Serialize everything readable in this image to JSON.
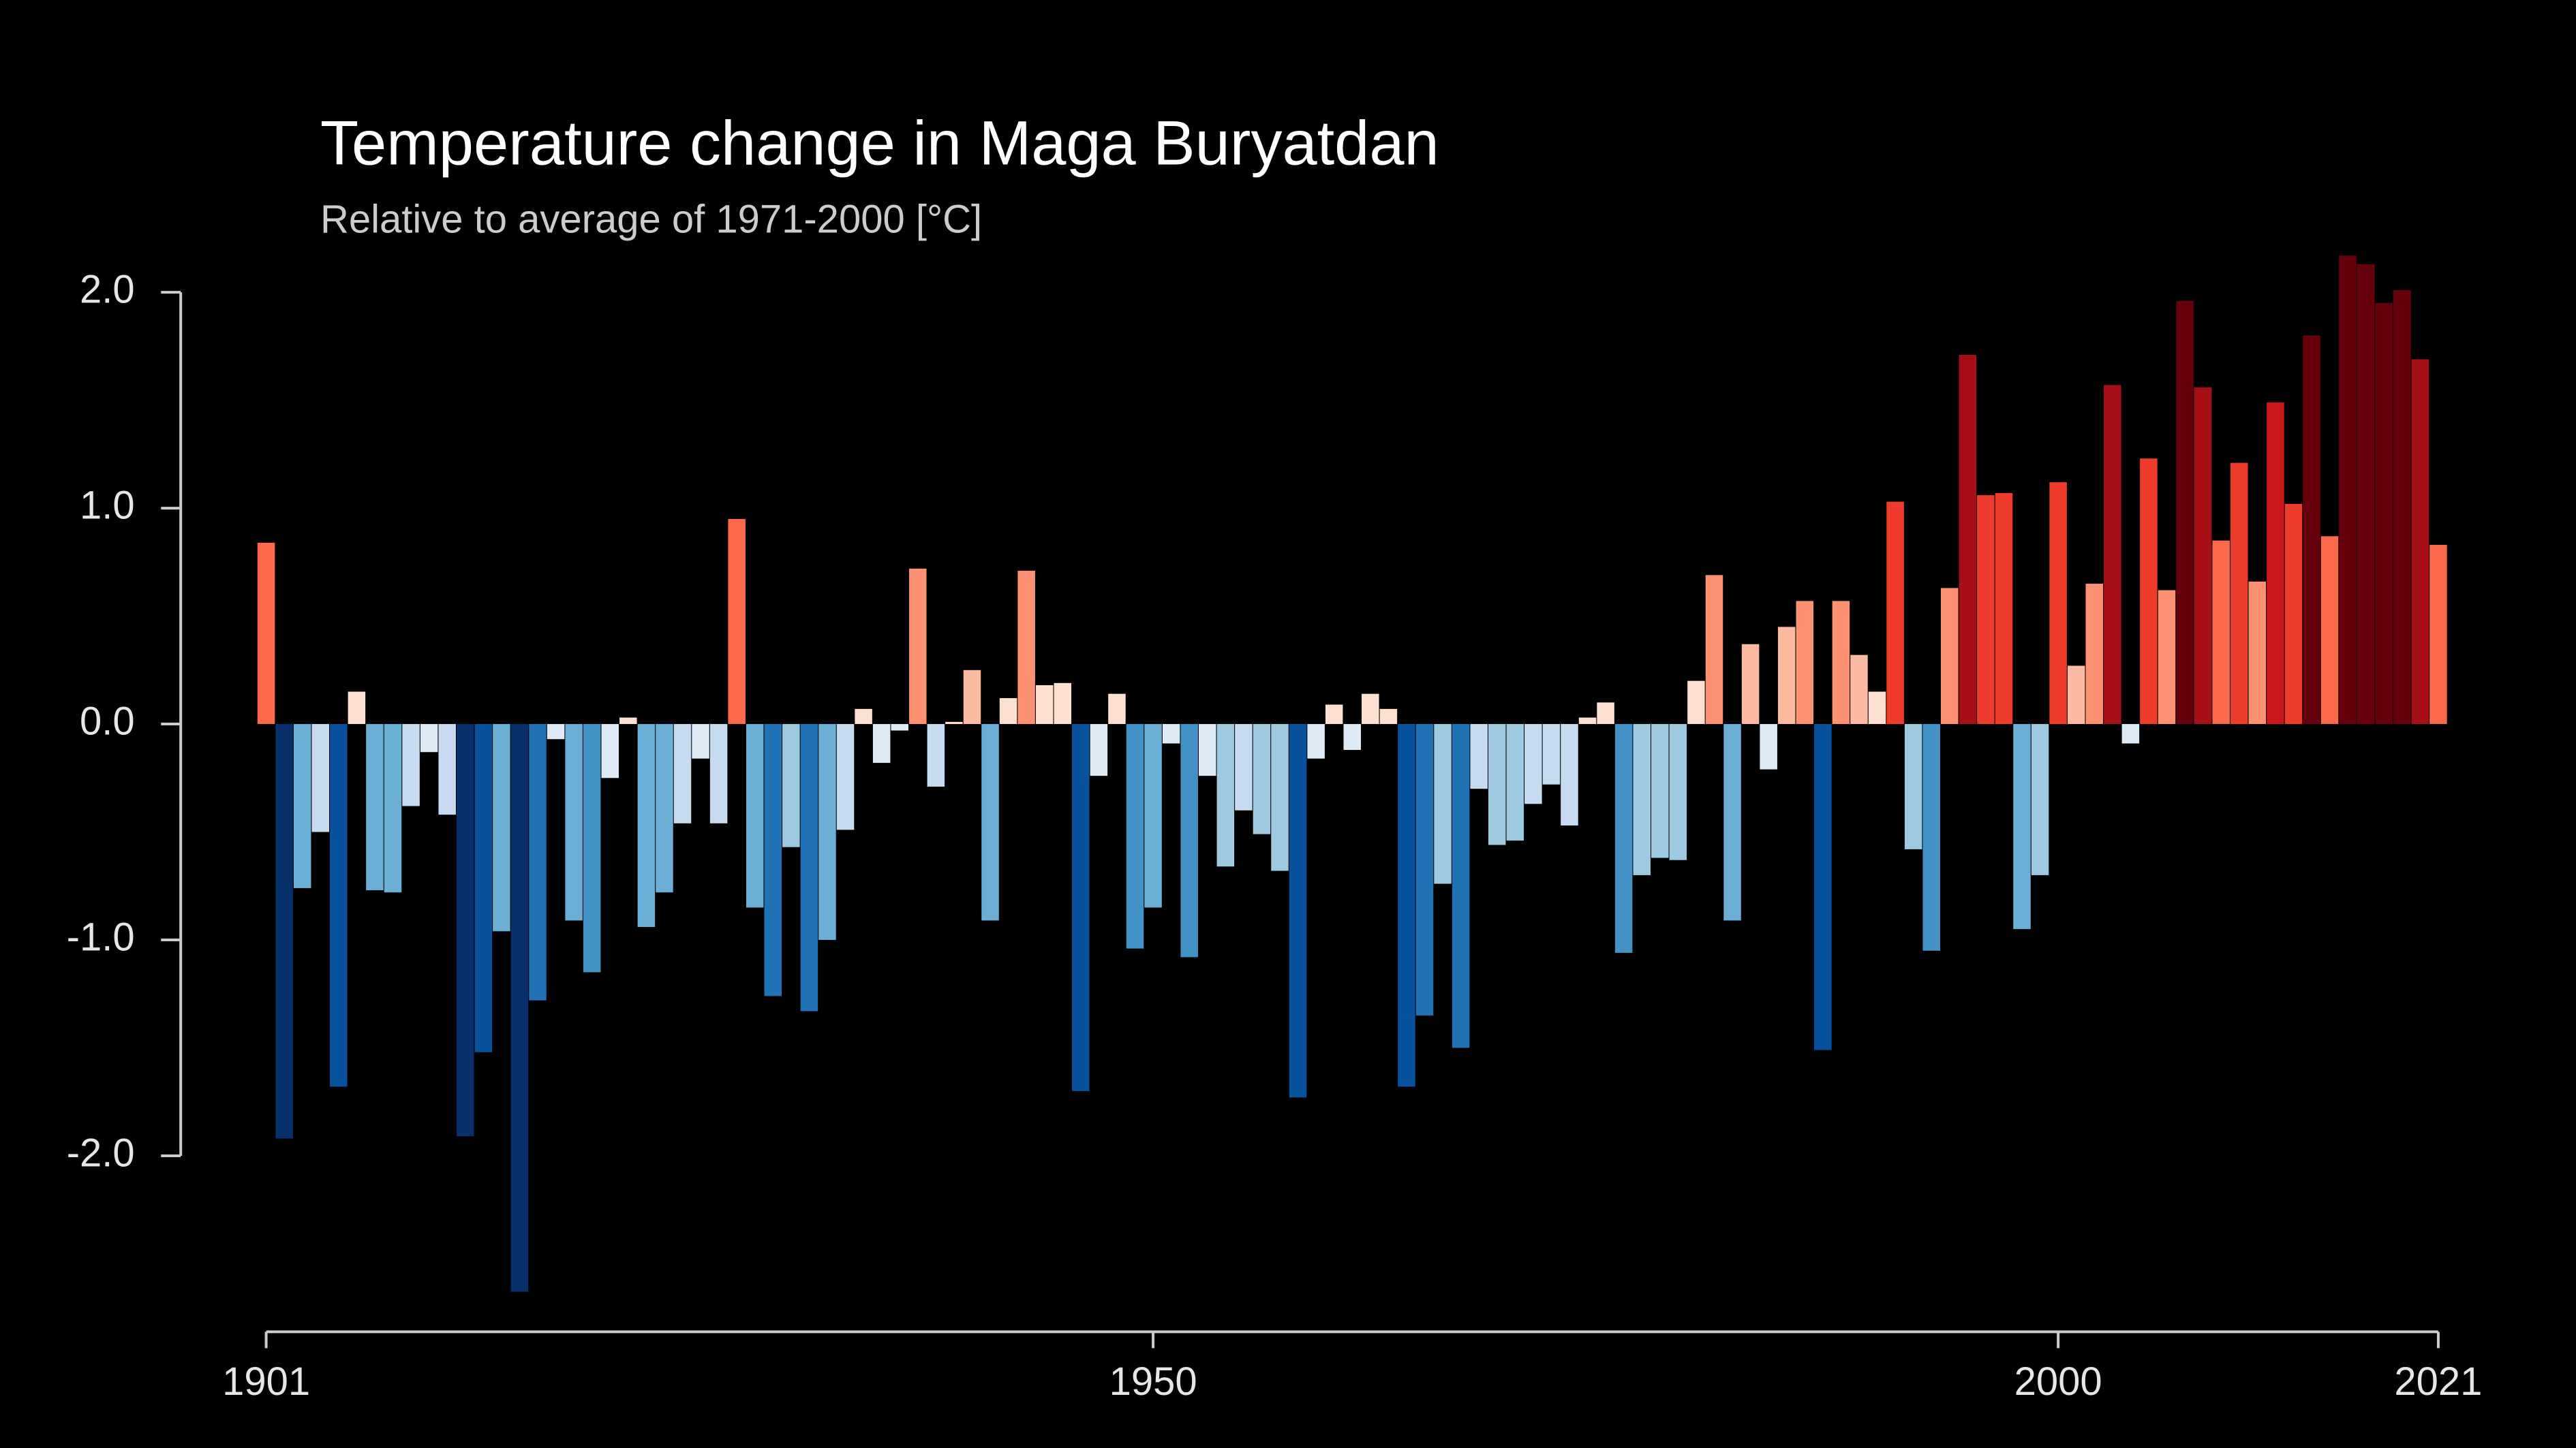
{
  "chart_data": {
    "type": "bar",
    "title": "Temperature change in Maga Buryatdan",
    "subtitle": "Relative to average of 1971-2000  [°C]",
    "x": [
      1901,
      1902,
      1903,
      1904,
      1905,
      1906,
      1907,
      1908,
      1909,
      1910,
      1911,
      1912,
      1913,
      1914,
      1915,
      1916,
      1917,
      1918,
      1919,
      1920,
      1921,
      1922,
      1923,
      1924,
      1925,
      1926,
      1927,
      1928,
      1929,
      1930,
      1931,
      1932,
      1933,
      1934,
      1935,
      1936,
      1937,
      1938,
      1939,
      1940,
      1941,
      1942,
      1943,
      1944,
      1945,
      1946,
      1947,
      1948,
      1949,
      1950,
      1951,
      1952,
      1953,
      1954,
      1955,
      1956,
      1957,
      1958,
      1959,
      1960,
      1961,
      1962,
      1963,
      1964,
      1965,
      1966,
      1967,
      1968,
      1969,
      1970,
      1971,
      1972,
      1973,
      1974,
      1975,
      1976,
      1977,
      1978,
      1979,
      1980,
      1981,
      1982,
      1983,
      1984,
      1985,
      1986,
      1987,
      1988,
      1989,
      1990,
      1991,
      1992,
      1993,
      1994,
      1995,
      1996,
      1997,
      1998,
      1999,
      2000,
      2001,
      2002,
      2003,
      2004,
      2005,
      2006,
      2007,
      2008,
      2009,
      2010,
      2011,
      2012,
      2013,
      2014,
      2015,
      2016,
      2017,
      2018,
      2019,
      2020,
      2021
    ],
    "values": [
      0.84,
      -1.92,
      -0.76,
      -0.5,
      -1.68,
      0.15,
      -0.77,
      -0.78,
      -0.38,
      -0.13,
      -0.42,
      -1.91,
      -1.52,
      -0.96,
      -2.63,
      -1.28,
      -0.07,
      -0.91,
      -1.15,
      -0.25,
      0.03,
      -0.94,
      -0.78,
      -0.46,
      -0.16,
      -0.46,
      0.95,
      -0.85,
      -1.26,
      -0.57,
      -1.33,
      -1.0,
      -0.49,
      0.07,
      -0.18,
      -0.03,
      0.72,
      -0.29,
      0.01,
      0.25,
      -0.91,
      0.12,
      0.71,
      0.18,
      0.19,
      -1.7,
      -0.24,
      0.14,
      -1.04,
      -0.85,
      -0.09,
      -1.08,
      -0.24,
      -0.66,
      -0.4,
      -0.51,
      -0.68,
      -1.73,
      -0.16,
      0.09,
      -0.12,
      0.14,
      0.07,
      -1.68,
      -1.35,
      -0.74,
      -1.5,
      -0.3,
      -0.56,
      -0.54,
      -0.37,
      -0.28,
      -0.47,
      0.03,
      0.1,
      -1.06,
      -0.7,
      -0.62,
      -0.63,
      0.2,
      0.69,
      -0.91,
      0.37,
      -0.21,
      0.45,
      0.57,
      -1.51,
      0.57,
      0.32,
      0.15,
      1.03,
      -0.58,
      -1.05,
      0.63,
      1.71,
      1.06,
      1.07,
      -0.95,
      -0.7,
      1.12,
      0.27,
      0.65,
      1.57,
      -0.09,
      1.23,
      0.62,
      1.96,
      1.56,
      0.85,
      1.21,
      0.66,
      1.49,
      1.02,
      1.8,
      0.87,
      2.17,
      2.13,
      1.95,
      2.01,
      1.69,
      0.83
    ],
    "color_scale": {
      "range": [
        -2.0,
        2.0
      ],
      "colors": [
        "#08306b",
        "#08519c",
        "#2171b5",
        "#4292c6",
        "#6baed6",
        "#9ecae1",
        "#c6dbef",
        "#deebf7",
        "#fee0d2",
        "#fcbba1",
        "#fc9272",
        "#fb6a4a",
        "#ef3b2c",
        "#cb181d",
        "#a50f15",
        "#67000d"
      ]
    },
    "xlim": [
      1901,
      2021
    ],
    "xticks": [
      1901,
      1950,
      2000,
      2021
    ],
    "ylim": [
      -2.8,
      2.0
    ],
    "yticks": [
      {
        "value": 2,
        "label": "2.0"
      },
      {
        "value": 1,
        "label": "1.0"
      },
      {
        "value": 0,
        "label": "0.0"
      },
      {
        "value": -1,
        "label": "-1.0"
      },
      {
        "value": -2,
        "label": "-2.0"
      }
    ]
  }
}
